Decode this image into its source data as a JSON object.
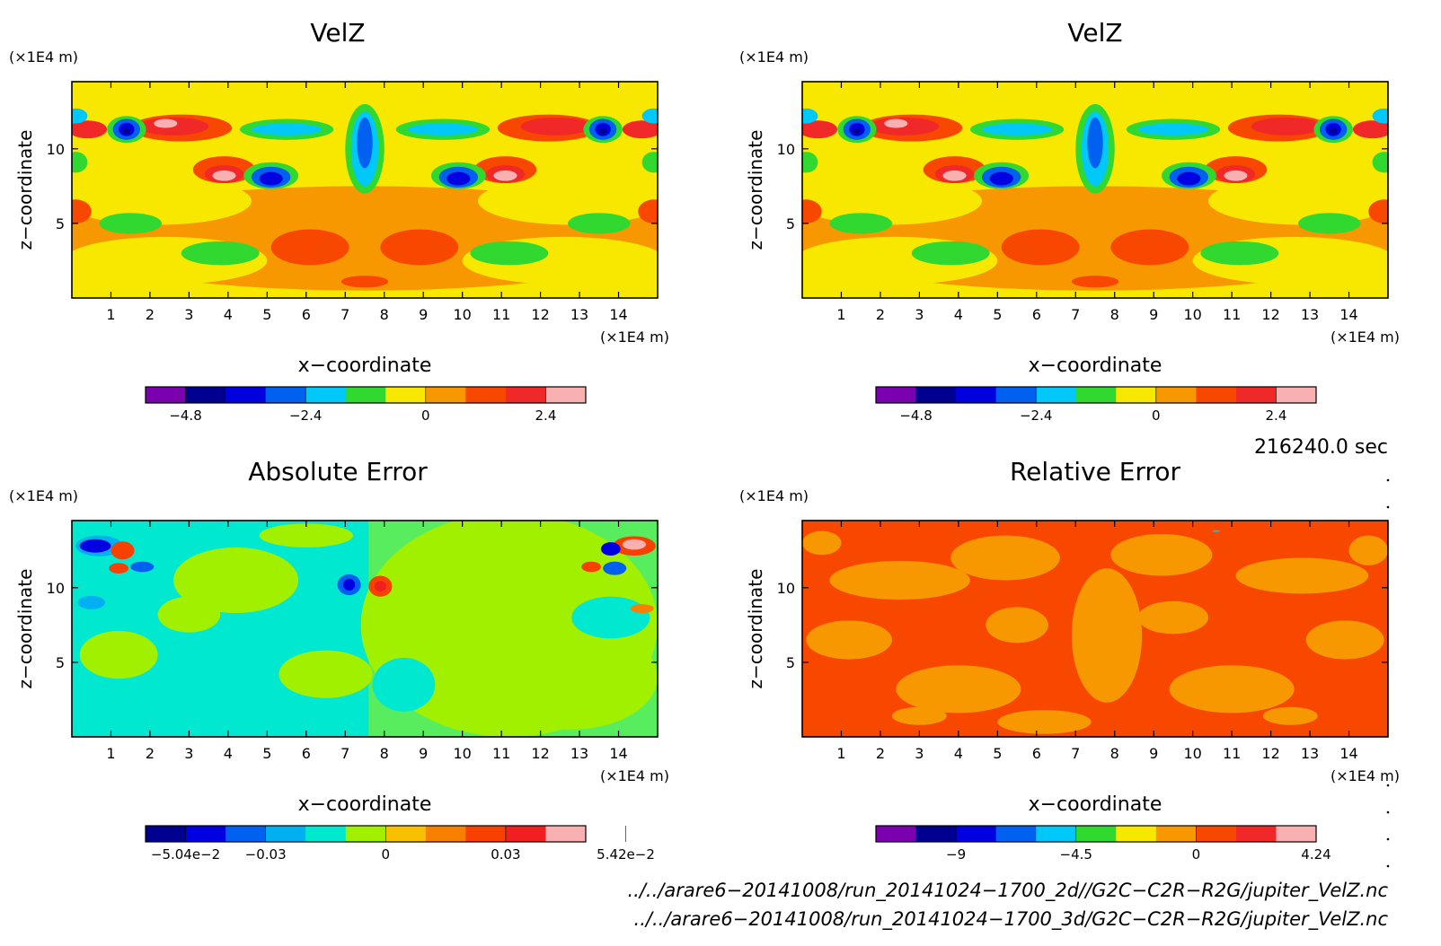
{
  "panels": [
    {
      "title": "VelZ",
      "kind": "velz",
      "xlabel": "x−coordinate",
      "ylabel": "z−coordinate",
      "xunit": "(×1E4 m)",
      "yunit": "(×1E4 m)",
      "xticks": [
        "1",
        "2",
        "3",
        "4",
        "5",
        "6",
        "7",
        "8",
        "9",
        "10",
        "11",
        "12",
        "13",
        "14"
      ],
      "yticks": [
        "5",
        "10"
      ],
      "colorbar": {
        "colors": [
          "#7a00b0",
          "#000090",
          "#0000e0",
          "#0060f0",
          "#00c8f8",
          "#30d830",
          "#f8e800",
          "#f89800",
          "#f84800",
          "#f02828",
          "#f8b0b0"
        ],
        "labels": [
          {
            "text": "−4.8",
            "at": 0
          },
          {
            "text": "−2.4",
            "at": 3
          },
          {
            "text": "0",
            "at": 6
          },
          {
            "text": "2.4",
            "at": 9
          }
        ]
      }
    },
    {
      "title": "VelZ",
      "kind": "velz",
      "xlabel": "x−coordinate",
      "ylabel": "z−coordinate",
      "xunit": "(×1E4 m)",
      "yunit": "(×1E4 m)",
      "xticks": [
        "1",
        "2",
        "3",
        "4",
        "5",
        "6",
        "7",
        "8",
        "9",
        "10",
        "11",
        "12",
        "13",
        "14"
      ],
      "yticks": [
        "5",
        "10"
      ],
      "colorbar": {
        "colors": [
          "#7a00b0",
          "#000090",
          "#0000e0",
          "#0060f0",
          "#00c8f8",
          "#30d830",
          "#f8e800",
          "#f89800",
          "#f84800",
          "#f02828",
          "#f8b0b0"
        ],
        "labels": [
          {
            "text": "−4.8",
            "at": 0
          },
          {
            "text": "−2.4",
            "at": 3
          },
          {
            "text": "0",
            "at": 6
          },
          {
            "text": "2.4",
            "at": 9
          }
        ]
      }
    },
    {
      "title": "Absolute Error",
      "kind": "abs",
      "xlabel": "x−coordinate",
      "ylabel": "z−coordinate",
      "xunit": "(×1E4 m)",
      "yunit": "(×1E4 m)",
      "xticks": [
        "1",
        "2",
        "3",
        "4",
        "5",
        "6",
        "7",
        "8",
        "9",
        "10",
        "11",
        "12",
        "13",
        "14"
      ],
      "yticks": [
        "5",
        "10"
      ],
      "colorbar": {
        "colors": [
          "#000090",
          "#0000e0",
          "#0060f0",
          "#00b0f0",
          "#00e8d0",
          "#a0f000",
          "#f8c000",
          "#f88000",
          "#f84000",
          "#f02020",
          "#f8b0b0"
        ],
        "labels": [
          {
            "text": "−5.04e−2",
            "at": 0
          },
          {
            "text": "−0.03",
            "at": 2
          },
          {
            "text": "0",
            "at": 5
          },
          {
            "text": "0.03",
            "at": 8
          },
          {
            "text": "5.42e−2",
            "at": 11
          }
        ]
      }
    },
    {
      "title": "Relative Error",
      "kind": "rel",
      "xlabel": "x−coordinate",
      "ylabel": "z−coordinate",
      "xunit": "(×1E4 m)",
      "yunit": "(×1E4 m)",
      "xticks": [
        "1",
        "2",
        "3",
        "4",
        "5",
        "6",
        "7",
        "8",
        "9",
        "10",
        "11",
        "12",
        "13",
        "14"
      ],
      "yticks": [
        "5",
        "10"
      ],
      "colorbar": {
        "colors": [
          "#7a00b0",
          "#000090",
          "#0000e0",
          "#0060f0",
          "#00c8f8",
          "#30d830",
          "#f8e800",
          "#f89800",
          "#f84800",
          "#f02828",
          "#f8b0b0"
        ],
        "labels": [
          {
            "text": "−9",
            "at": 1
          },
          {
            "text": "−4.5",
            "at": 4
          },
          {
            "text": "0",
            "at": 7
          },
          {
            "text": "4.24",
            "at": 10
          }
        ]
      }
    }
  ],
  "time_label": "216240.0 sec",
  "file_paths": [
    "../../arare6−20141008/run_20141024−1700_2d//G2C−C2R−R2G/jupiter_VelZ.nc",
    "../../arare6−20141008/run_20141024−1700_3d/G2C−C2R−R2G/jupiter_VelZ.nc"
  ],
  "chart_data": [
    {
      "type": "heatmap",
      "title": "VelZ",
      "xlabel": "x−coordinate",
      "ylabel": "z−coordinate",
      "xlim": [
        0,
        15
      ],
      "ylim": [
        0,
        14.5
      ],
      "x_ticks": [
        1,
        2,
        3,
        4,
        5,
        6,
        7,
        8,
        9,
        10,
        11,
        12,
        13,
        14
      ],
      "y_ticks": [
        5,
        10
      ],
      "colorbar_ticks": [
        -4.8,
        -2.4,
        0,
        2.4
      ]
    },
    {
      "type": "heatmap",
      "title": "VelZ",
      "xlabel": "x−coordinate",
      "ylabel": "z−coordinate",
      "xlim": [
        0,
        15
      ],
      "ylim": [
        0,
        14.5
      ],
      "x_ticks": [
        1,
        2,
        3,
        4,
        5,
        6,
        7,
        8,
        9,
        10,
        11,
        12,
        13,
        14
      ],
      "y_ticks": [
        5,
        10
      ],
      "colorbar_ticks": [
        -4.8,
        -2.4,
        0,
        2.4
      ]
    },
    {
      "type": "heatmap",
      "title": "Absolute Error",
      "xlabel": "x−coordinate",
      "ylabel": "z−coordinate",
      "xlim": [
        0,
        15
      ],
      "ylim": [
        0,
        14.5
      ],
      "x_ticks": [
        1,
        2,
        3,
        4,
        5,
        6,
        7,
        8,
        9,
        10,
        11,
        12,
        13,
        14
      ],
      "y_ticks": [
        5,
        10
      ],
      "colorbar_ticks": [
        -0.0504,
        -0.03,
        0,
        0.03,
        0.0542
      ]
    },
    {
      "type": "heatmap",
      "title": "Relative Error",
      "xlabel": "x−coordinate",
      "ylabel": "z−coordinate",
      "xlim": [
        0,
        15
      ],
      "ylim": [
        0,
        14.5
      ],
      "x_ticks": [
        1,
        2,
        3,
        4,
        5,
        6,
        7,
        8,
        9,
        10,
        11,
        12,
        13,
        14
      ],
      "y_ticks": [
        5,
        10
      ],
      "colorbar_ticks": [
        -9,
        -4.5,
        0,
        4.24
      ]
    }
  ]
}
